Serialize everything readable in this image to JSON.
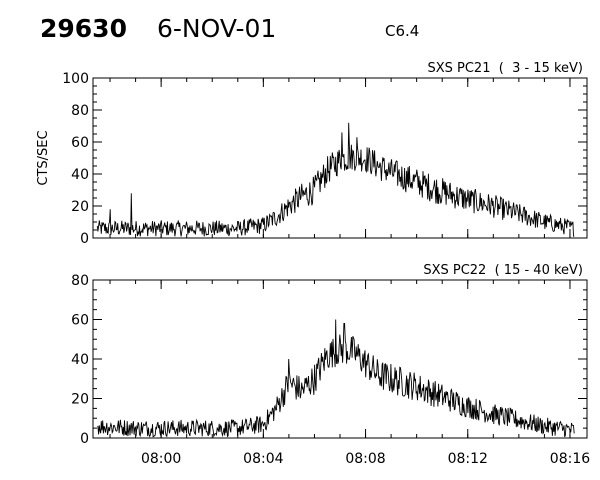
{
  "header": {
    "event_id": "29630",
    "date": "6-NOV-01",
    "flare_class": "C6.4"
  },
  "chart_data": [
    {
      "type": "line",
      "title": "SXS PC21  (  3 - 15 keV)",
      "xlabel": "",
      "ylabel": "CTS/SEC",
      "ylim": [
        0,
        100
      ],
      "yticks": [
        0,
        20,
        40,
        60,
        80,
        100
      ],
      "xlim": [
        "07:57:20",
        "08:16:40"
      ],
      "xticks": [
        "08:00",
        "08:04",
        "08:08",
        "08:12",
        "08:16"
      ],
      "x_tick_labels_shown": false,
      "grid": false,
      "noise": 9,
      "profile": [
        [
          "07:57:30",
          6
        ],
        [
          "07:59:00",
          6
        ],
        [
          "08:01:00",
          6
        ],
        [
          "08:03:00",
          6
        ],
        [
          "08:04:00",
          8
        ],
        [
          "08:04:30",
          13
        ],
        [
          "08:05:00",
          20
        ],
        [
          "08:05:30",
          26
        ],
        [
          "08:06:00",
          30
        ],
        [
          "08:06:30",
          42
        ],
        [
          "08:07:00",
          49
        ],
        [
          "08:07:30",
          51
        ],
        [
          "08:08:00",
          50
        ],
        [
          "08:08:30",
          45
        ],
        [
          "08:09:00",
          41
        ],
        [
          "08:10:00",
          35
        ],
        [
          "08:11:00",
          29
        ],
        [
          "08:12:00",
          24
        ],
        [
          "08:13:00",
          20
        ],
        [
          "08:14:00",
          15
        ],
        [
          "08:15:00",
          10
        ],
        [
          "08:16:10",
          6
        ]
      ],
      "spikes": [
        [
          "07:58:50",
          28
        ],
        [
          "07:58:00",
          18
        ],
        [
          "08:07:20",
          72
        ],
        [
          "08:07:05",
          66
        ],
        [
          "08:07:40",
          63
        ]
      ]
    },
    {
      "type": "line",
      "title": "SXS PC22  ( 15 - 40 keV)",
      "xlabel": "",
      "ylabel": "",
      "ylim": [
        0,
        80
      ],
      "yticks": [
        0,
        20,
        40,
        60,
        80
      ],
      "xlim": [
        "07:57:20",
        "08:16:40"
      ],
      "xticks": [
        "08:00",
        "08:04",
        "08:08",
        "08:12",
        "08:16"
      ],
      "x_tick_labels_shown": true,
      "grid": false,
      "noise": 8,
      "profile": [
        [
          "07:57:30",
          6
        ],
        [
          "07:59:00",
          5
        ],
        [
          "08:01:00",
          5
        ],
        [
          "08:03:00",
          5
        ],
        [
          "08:04:00",
          7
        ],
        [
          "08:04:30",
          15
        ],
        [
          "08:05:00",
          28
        ],
        [
          "08:05:30",
          24
        ],
        [
          "08:06:00",
          30
        ],
        [
          "08:06:30",
          42
        ],
        [
          "08:07:00",
          45
        ],
        [
          "08:07:30",
          44
        ],
        [
          "08:08:00",
          38
        ],
        [
          "08:08:30",
          32
        ],
        [
          "08:09:00",
          30
        ],
        [
          "08:10:00",
          26
        ],
        [
          "08:11:00",
          21
        ],
        [
          "08:12:00",
          16
        ],
        [
          "08:13:00",
          12
        ],
        [
          "08:14:00",
          9
        ],
        [
          "08:15:00",
          6
        ],
        [
          "08:16:10",
          4
        ]
      ],
      "spikes": [
        [
          "08:06:50",
          60
        ],
        [
          "08:07:10",
          58
        ],
        [
          "08:05:00",
          40
        ]
      ]
    }
  ]
}
